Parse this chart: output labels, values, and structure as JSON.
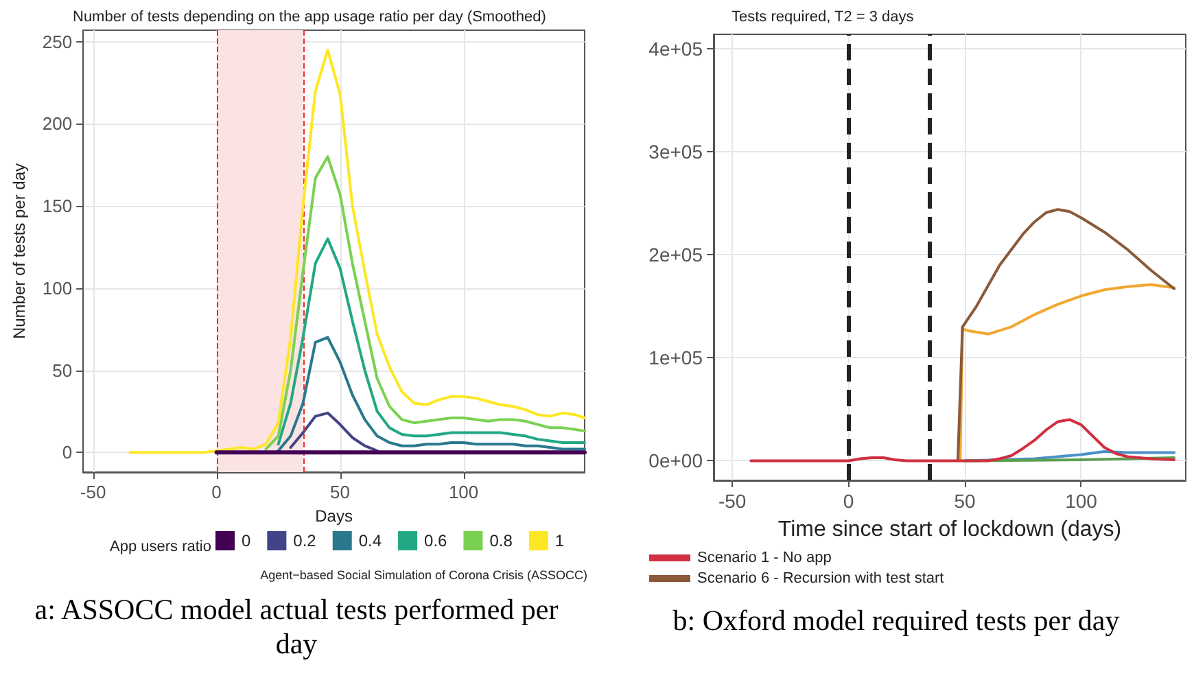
{
  "chart_data": [
    {
      "type": "line",
      "title": "Number of tests depending on the app usage ratio per day (Smoothed)",
      "xlabel": "Days",
      "ylabel": "Number of tests per day",
      "legend_title": "App users ratio",
      "x": [
        -35,
        -30,
        -25,
        -20,
        -15,
        -10,
        -5,
        0,
        5,
        10,
        15,
        20,
        25,
        30,
        35,
        40,
        45,
        50,
        55,
        60,
        65,
        70,
        75,
        80,
        85,
        90,
        95,
        100,
        105,
        110,
        115,
        120,
        125,
        130,
        135,
        140,
        145,
        149
      ],
      "series": [
        {
          "name": "0",
          "color": "#440154",
          "values": [
            null,
            null,
            null,
            null,
            null,
            null,
            null,
            0,
            0,
            0,
            0,
            0,
            0,
            0,
            0,
            0,
            0,
            0,
            0,
            0,
            0,
            0,
            0,
            0,
            0,
            0,
            0,
            0,
            0,
            0,
            0,
            0,
            0,
            0,
            0,
            0,
            0,
            0
          ]
        },
        {
          "name": "0.2",
          "color": "#414487",
          "values": [
            null,
            null,
            null,
            null,
            null,
            null,
            null,
            null,
            null,
            null,
            null,
            null,
            null,
            3,
            12,
            22,
            24,
            17,
            9,
            4,
            1,
            null,
            null,
            null,
            null,
            null,
            null,
            null,
            null,
            null,
            null,
            null,
            null,
            null,
            null,
            null,
            null,
            null
          ]
        },
        {
          "name": "0.4",
          "color": "#2a788e",
          "values": [
            null,
            null,
            null,
            null,
            null,
            null,
            null,
            null,
            null,
            null,
            null,
            null,
            1,
            10,
            30,
            67,
            70,
            55,
            35,
            20,
            10,
            6,
            4,
            4,
            5,
            5,
            6,
            6,
            5,
            5,
            5,
            5,
            4,
            4,
            3,
            2,
            2,
            2
          ]
        },
        {
          "name": "0.6",
          "color": "#22a884",
          "values": [
            null,
            null,
            null,
            null,
            null,
            null,
            null,
            null,
            null,
            null,
            null,
            null,
            5,
            30,
            70,
            115,
            130,
            112,
            80,
            50,
            25,
            15,
            11,
            10,
            10,
            11,
            12,
            12,
            12,
            12,
            12,
            11,
            10,
            8,
            7,
            6,
            6,
            6
          ]
        },
        {
          "name": "0.8",
          "color": "#7ad151",
          "values": [
            null,
            null,
            null,
            null,
            null,
            null,
            null,
            null,
            null,
            null,
            null,
            2,
            10,
            50,
            110,
            167,
            180,
            157,
            115,
            80,
            45,
            28,
            20,
            18,
            19,
            20,
            21,
            21,
            20,
            19,
            20,
            20,
            19,
            17,
            15,
            15,
            14,
            13
          ]
        },
        {
          "name": "1",
          "color": "#fde725",
          "values": [
            0,
            0,
            0,
            0,
            0,
            0,
            0,
            1,
            2,
            3,
            2,
            5,
            18,
            70,
            150,
            220,
            245,
            218,
            150,
            110,
            72,
            52,
            37,
            30,
            29,
            32,
            34,
            34,
            33,
            31,
            29,
            28,
            26,
            23,
            22,
            24,
            23,
            21
          ]
        }
      ],
      "xlim": [
        -54,
        149
      ],
      "xticks": [
        -50,
        0,
        50,
        100
      ],
      "ylim": [
        -12,
        257
      ],
      "yticks": [
        0,
        50,
        100,
        150,
        200,
        250
      ],
      "grid": true,
      "legend": "bottom",
      "bands": [
        {
          "axis": "x",
          "from": 0,
          "to": 35,
          "color": "#fbe3e3"
        }
      ],
      "ref_lines": [
        {
          "axis": "x",
          "value": 0,
          "color": "#e8302a",
          "line_style": "dashed"
        },
        {
          "axis": "x",
          "value": 35,
          "color": "#e8302a",
          "line_style": "dashed"
        }
      ],
      "annotations": [
        "Agent−based Social Simulation of Corona Crisis (ASSOCC)",
        "a: ASSOCC model actual tests performed per day"
      ]
    },
    {
      "type": "line",
      "title": "Tests required, T2 = 3 days",
      "xlabel": "Time since start of lockdown (days)",
      "series": [
        {
          "color": "#4a90c8",
          "x": [
            50,
            80,
            100,
            110,
            120,
            130,
            140
          ],
          "values": [
            0,
            2000,
            6000,
            9000,
            8000,
            8000,
            8000
          ]
        },
        {
          "color": "#5aa050",
          "x": [
            50,
            100,
            140
          ],
          "values": [
            0,
            1000,
            3000
          ]
        },
        {
          "color": "#f0a830",
          "x": [
            48,
            49,
            52,
            60,
            70,
            80,
            90,
            100,
            110,
            120,
            130,
            140
          ],
          "values": [
            0,
            128000,
            126000,
            123000,
            130000,
            142000,
            152000,
            160000,
            166000,
            169000,
            171000,
            168000
          ]
        },
        {
          "name": "Scenario 6 - Recursion with test start",
          "color": "#8a5a3a",
          "x": [
            47,
            49,
            55,
            60,
            65,
            70,
            75,
            80,
            85,
            90,
            95,
            100,
            110,
            120,
            130,
            140
          ],
          "values": [
            0,
            130000,
            150000,
            170000,
            190000,
            205000,
            220000,
            232000,
            241000,
            244000,
            242000,
            236000,
            222000,
            205000,
            185000,
            167000
          ]
        },
        {
          "name": "Scenario 1 - No app",
          "color": "#d03040",
          "x": [
            -42,
            -20,
            0,
            5,
            10,
            15,
            20,
            25,
            40,
            60,
            65,
            70,
            75,
            80,
            85,
            90,
            95,
            100,
            105,
            110,
            115,
            120,
            130,
            140
          ],
          "values": [
            0,
            0,
            0,
            2000,
            3000,
            3000,
            1000,
            0,
            0,
            0,
            2000,
            5000,
            12000,
            20000,
            30000,
            38000,
            40000,
            35000,
            24000,
            13000,
            7000,
            4000,
            2000,
            1000
          ]
        }
      ],
      "xlim": [
        -58,
        145
      ],
      "xticks": [
        -50,
        0,
        50,
        100
      ],
      "ylim": [
        -19000,
        414000
      ],
      "yticks": [
        {
          "value": 0,
          "label": "0e+00"
        },
        {
          "value": 100000,
          "label": "1e+05"
        },
        {
          "value": 200000,
          "label": "2e+05"
        },
        {
          "value": 300000,
          "label": "3e+05"
        },
        {
          "value": 400000,
          "label": "4e+05"
        }
      ],
      "grid": true,
      "legend": "bottom",
      "ref_lines": [
        {
          "axis": "x",
          "value": 0,
          "color": "#222222",
          "line_style": "dashed"
        },
        {
          "axis": "x",
          "value": 35,
          "color": "#222222",
          "line_style": "dashed"
        }
      ],
      "annotations": [
        "b: Oxford model required tests per day"
      ]
    }
  ]
}
